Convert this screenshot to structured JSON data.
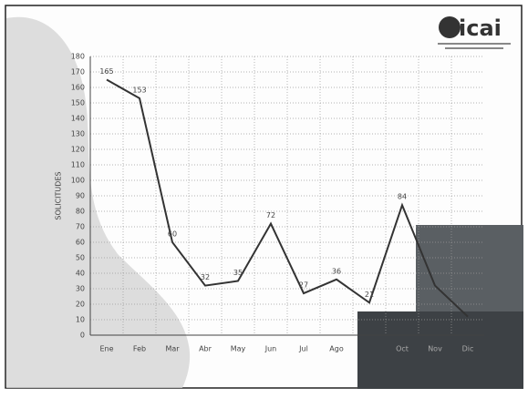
{
  "logo": "icai",
  "chart_data": {
    "type": "line",
    "y_label": "SOLICITUDES",
    "categories": [
      "Ene",
      "Feb",
      "Mar",
      "Abr",
      "May",
      "Jun",
      "Jul",
      "Ago",
      null,
      "Oct",
      "Nov",
      "Dic"
    ],
    "values": [
      165,
      153,
      60,
      32,
      35,
      72,
      27,
      36,
      21,
      84,
      32,
      12
    ],
    "value_labels": [
      "165",
      "153",
      "60",
      "32",
      "35",
      "72",
      "27",
      "36",
      "21",
      "84",
      null,
      null
    ],
    "color": "#333333",
    "ylim": [
      0,
      180
    ],
    "yticks": [
      0,
      10,
      20,
      30,
      40,
      50,
      60,
      70,
      80,
      90,
      100,
      110,
      120,
      130,
      140,
      150,
      160,
      170,
      180
    ],
    "grid": true
  }
}
